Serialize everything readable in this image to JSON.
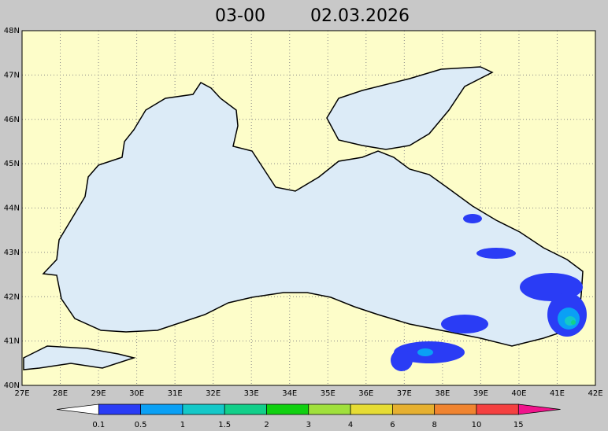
{
  "header": {
    "time": "03-00",
    "date": "02.03.2026"
  },
  "axes": {
    "x_labels": [
      "27E",
      "28E",
      "29E",
      "30E",
      "31E",
      "32E",
      "33E",
      "34E",
      "35E",
      "36E",
      "37E",
      "38E",
      "39E",
      "40E",
      "41E",
      "42E"
    ],
    "y_labels": [
      "48N",
      "47N",
      "46N",
      "45N",
      "44N",
      "43N",
      "42N",
      "41N",
      "40N"
    ]
  },
  "legend": {
    "labels": [
      "0.1",
      "0.5",
      "1",
      "1.5",
      "2",
      "3",
      "4",
      "6",
      "8",
      "10",
      "15"
    ],
    "colors": [
      "#ffffff",
      "#2a3cf5",
      "#0aa0f5",
      "#14c8c8",
      "#12cf8a",
      "#10d010",
      "#a0e03c",
      "#e6dc34",
      "#e6b030",
      "#f08430",
      "#f44040",
      "#f0148c"
    ]
  }
}
